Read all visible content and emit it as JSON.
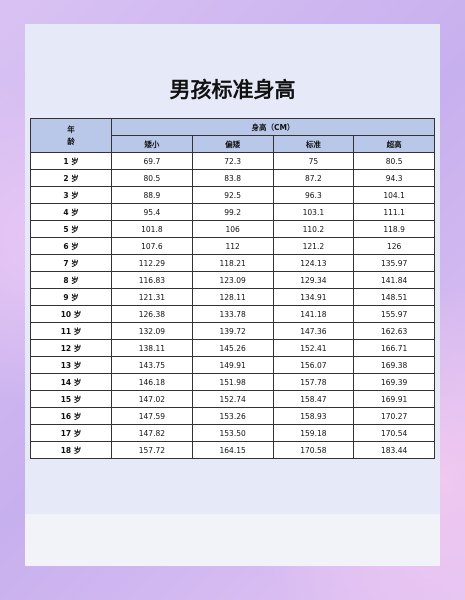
{
  "title": "男孩标准身高",
  "table": {
    "age_header": "年龄",
    "height_header": "身高（CM）",
    "columns": [
      "矮小",
      "偏矮",
      "标准",
      "超高"
    ],
    "rows": [
      [
        "1 岁",
        "69.7",
        "72.3",
        "75",
        "80.5"
      ],
      [
        "2 岁",
        "80.5",
        "83.8",
        "87.2",
        "94.3"
      ],
      [
        "3 岁",
        "88.9",
        "92.5",
        "96.3",
        "104.1"
      ],
      [
        "4 岁",
        "95.4",
        "99.2",
        "103.1",
        "111.1"
      ],
      [
        "5 岁",
        "101.8",
        "106",
        "110.2",
        "118.9"
      ],
      [
        "6 岁",
        "107.6",
        "112",
        "121.2",
        "126"
      ],
      [
        "7 岁",
        "112.29",
        "118.21",
        "124.13",
        "135.97"
      ],
      [
        "8 岁",
        "116.83",
        "123.09",
        "129.34",
        "141.84"
      ],
      [
        "9 岁",
        "121.31",
        "128.11",
        "134.91",
        "148.51"
      ],
      [
        "10 岁",
        "126.38",
        "133.78",
        "141.18",
        "155.97"
      ],
      [
        "11 岁",
        "132.09",
        "139.72",
        "147.36",
        "162.63"
      ],
      [
        "12 岁",
        "138.11",
        "145.26",
        "152.41",
        "166.71"
      ],
      [
        "13 岁",
        "143.75",
        "149.91",
        "156.07",
        "169.38"
      ],
      [
        "14 岁",
        "146.18",
        "151.98",
        "157.78",
        "169.39"
      ],
      [
        "15 岁",
        "147.02",
        "152.74",
        "158.47",
        "169.91"
      ],
      [
        "16 岁",
        "147.59",
        "153.26",
        "158.93",
        "170.27"
      ],
      [
        "17 岁",
        "147.82",
        "153.50",
        "159.18",
        "170.54"
      ],
      [
        "18 岁",
        "157.72",
        "164.15",
        "170.58",
        "183.44"
      ]
    ]
  }
}
